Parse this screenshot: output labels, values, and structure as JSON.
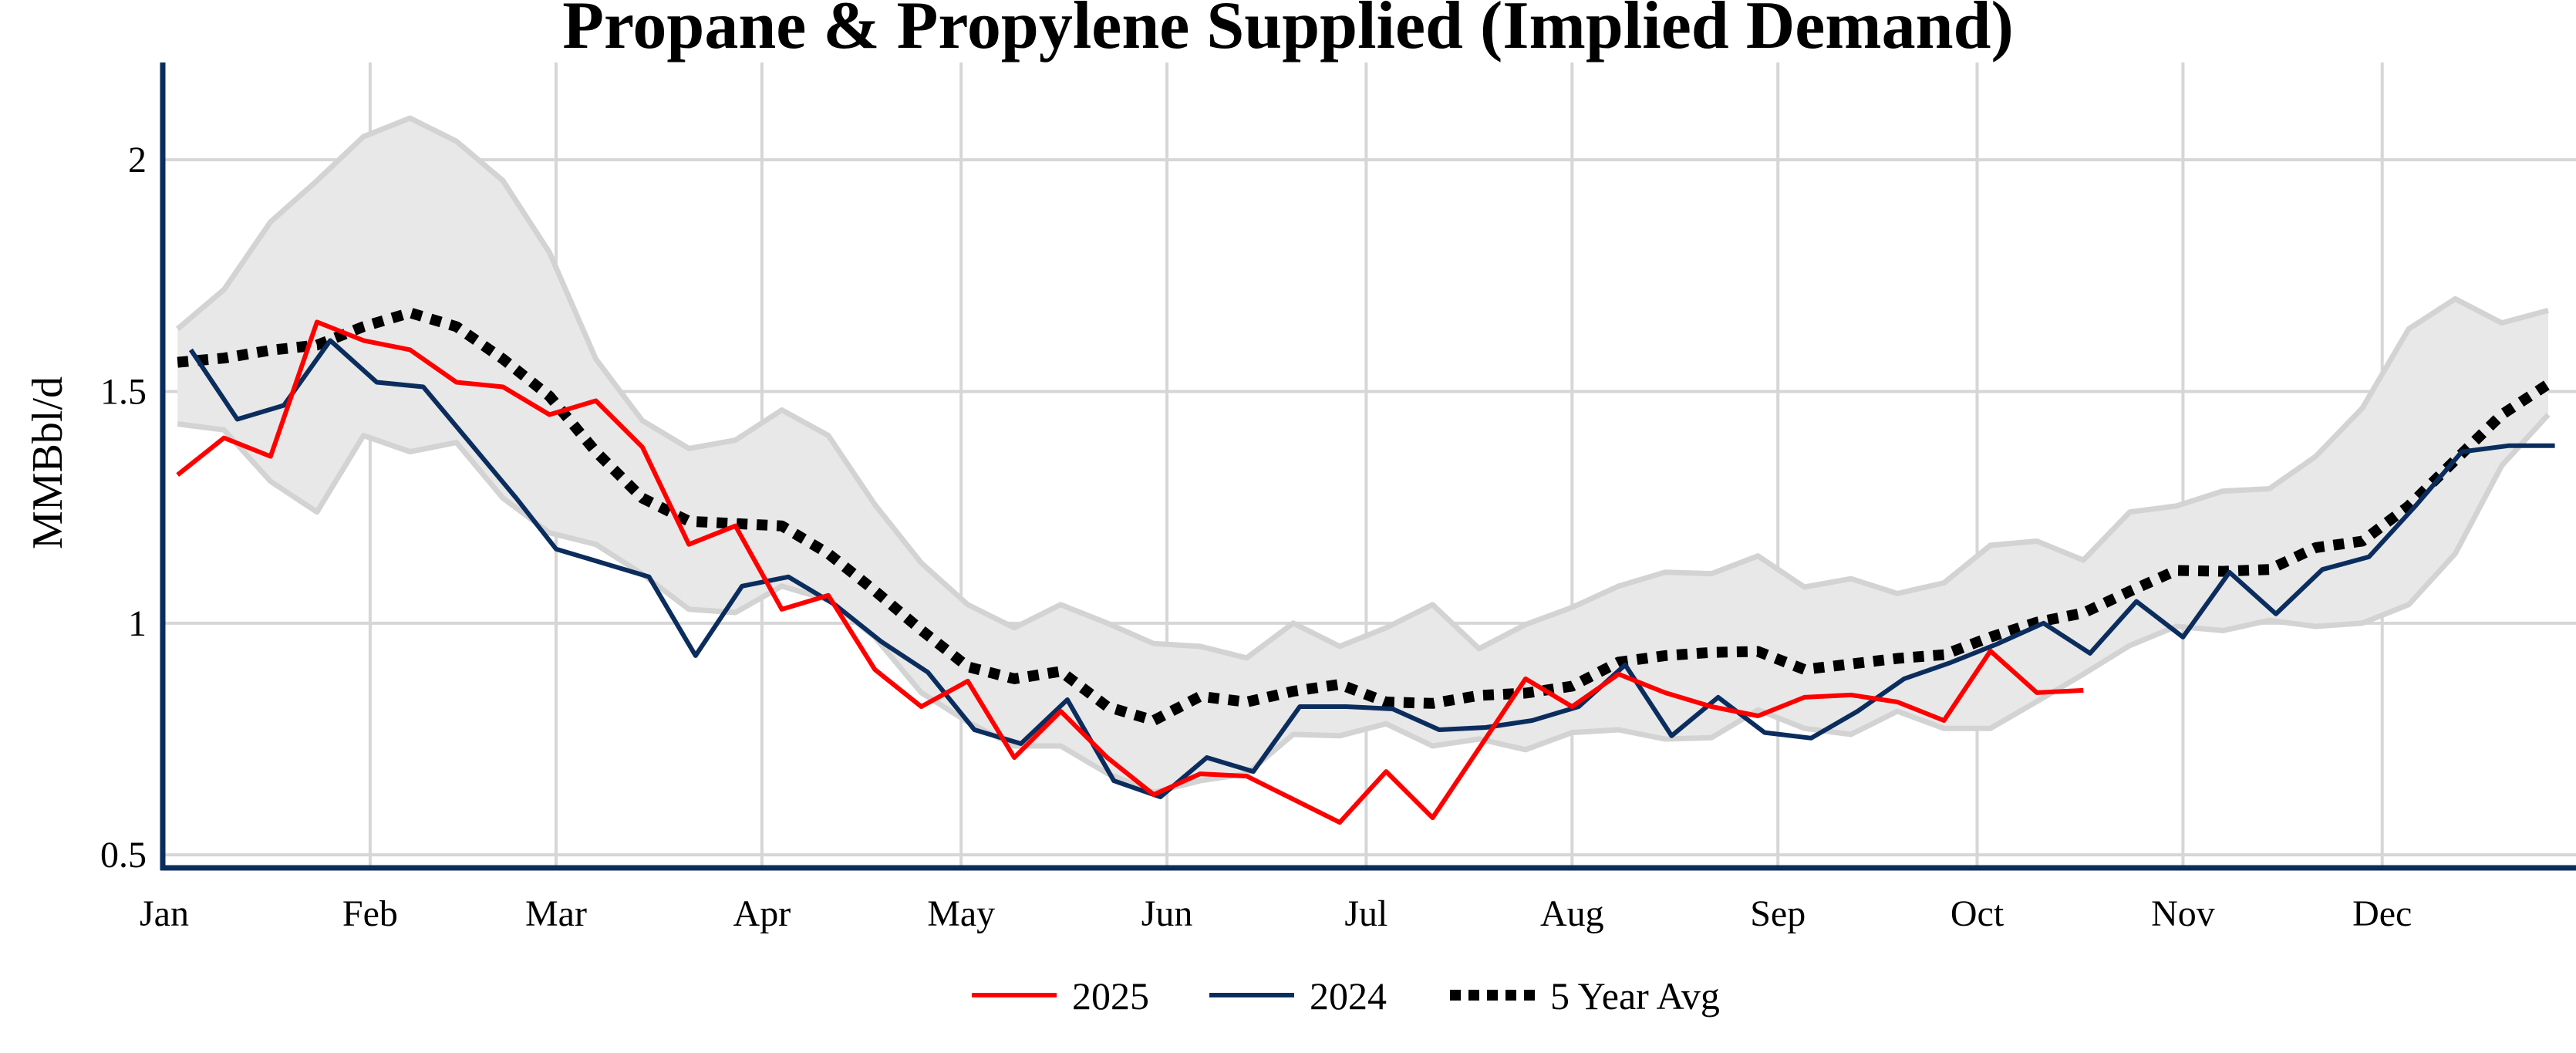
{
  "chart_data": {
    "type": "line",
    "title": "Propane & Propylene Supplied (Implied Demand)",
    "xlabel": "",
    "ylabel": "MMBbl/d",
    "ylim": [
      0.477,
      2.21
    ],
    "xlim": [
      "01-01",
      "12-31"
    ],
    "x_ticks": [
      "Jan",
      "Feb",
      "Mar",
      "Apr",
      "May",
      "Jun",
      "Jul",
      "Aug",
      "Sep",
      "Oct",
      "Nov",
      "Dec"
    ],
    "y_ticks": [
      0.5,
      1,
      1.5,
      2
    ],
    "y_tick_labels": [
      "0.5",
      "1",
      "1.5",
      "2"
    ],
    "grid": true,
    "legend_position": "bottom-center",
    "colors": {
      "s2025": "#ff0000",
      "s2024": "#0b2d5e",
      "avg": "#000000",
      "band_fill": "#e8e8e8",
      "band_line": "#d3d3d3",
      "grid": "#d6d6d6",
      "axis": "#0b2d5e"
    },
    "band": {
      "dates": [
        "01-03",
        "01-10",
        "01-17",
        "01-24",
        "01-31",
        "02-07",
        "02-14",
        "02-21",
        "02-28",
        "03-07",
        "03-14",
        "03-21",
        "03-28",
        "04-04",
        "04-11",
        "04-18",
        "04-25",
        "05-02",
        "05-09",
        "05-16",
        "05-23",
        "05-30",
        "06-06",
        "06-13",
        "06-20",
        "06-27",
        "07-04",
        "07-11",
        "07-18",
        "07-25",
        "08-01",
        "08-08",
        "08-15",
        "08-22",
        "08-29",
        "09-05",
        "09-12",
        "09-19",
        "09-26",
        "10-03",
        "10-10",
        "10-17",
        "10-24",
        "10-31",
        "11-07",
        "11-14",
        "11-21",
        "11-28",
        "12-05",
        "12-12",
        "12-19",
        "12-26"
      ],
      "upper": [
        1.635,
        1.72,
        1.866,
        1.955,
        2.05,
        2.09,
        2.04,
        1.955,
        1.8,
        1.57,
        1.437,
        1.377,
        1.395,
        1.46,
        1.405,
        1.256,
        1.13,
        1.04,
        0.99,
        1.04,
        1.0,
        0.956,
        0.95,
        0.925,
        1.0,
        0.95,
        0.99,
        1.04,
        0.945,
        0.997,
        1.034,
        1.08,
        1.11,
        1.107,
        1.145,
        1.078,
        1.096,
        1.064,
        1.087,
        1.168,
        1.177,
        1.136,
        1.24,
        1.253,
        1.285,
        1.29,
        1.36,
        1.464,
        1.635,
        1.7,
        1.648,
        1.675
      ],
      "lower": [
        1.43,
        1.417,
        1.306,
        1.24,
        1.405,
        1.37,
        1.39,
        1.27,
        1.195,
        1.17,
        1.106,
        1.03,
        1.023,
        1.08,
        1.05,
        0.97,
        0.85,
        0.787,
        0.735,
        0.735,
        0.676,
        0.635,
        0.66,
        0.675,
        0.76,
        0.757,
        0.783,
        0.735,
        0.75,
        0.727,
        0.764,
        0.77,
        0.75,
        0.753,
        0.813,
        0.773,
        0.76,
        0.81,
        0.773,
        0.773,
        0.831,
        0.89,
        0.952,
        0.993,
        0.984,
        1.006,
        0.993,
        1.0,
        1.04,
        1.15,
        1.34,
        1.45
      ]
    },
    "series": [
      {
        "name": "2025",
        "style": "solid",
        "dates": [
          "01-03",
          "01-10",
          "01-17",
          "01-24",
          "01-31",
          "02-07",
          "02-14",
          "02-21",
          "02-28",
          "03-07",
          "03-14",
          "03-21",
          "03-28",
          "04-04",
          "04-11",
          "04-18",
          "04-25",
          "05-02",
          "05-09",
          "05-16",
          "05-23",
          "05-30",
          "06-06",
          "06-13",
          "06-20",
          "06-27",
          "07-04",
          "07-11",
          "07-18",
          "07-25",
          "08-01",
          "08-08",
          "08-15",
          "08-22",
          "08-29",
          "09-05",
          "09-12",
          "09-19",
          "09-26",
          "10-03",
          "10-10",
          "10-17"
        ],
        "values": [
          1.32,
          1.4,
          1.36,
          1.65,
          1.61,
          1.59,
          1.52,
          1.51,
          1.45,
          1.48,
          1.38,
          1.17,
          1.21,
          1.03,
          1.06,
          0.9,
          0.82,
          0.875,
          0.71,
          0.81,
          0.71,
          0.63,
          0.675,
          0.67,
          0.62,
          0.57,
          0.68,
          0.58,
          0.73,
          0.88,
          0.82,
          0.89,
          0.85,
          0.82,
          0.8,
          0.84,
          0.845,
          0.83,
          0.79,
          0.94,
          0.85,
          0.855
        ]
      },
      {
        "name": "2024",
        "style": "solid",
        "dates": [
          "01-05",
          "01-12",
          "01-19",
          "01-26",
          "02-02",
          "02-09",
          "02-16",
          "02-23",
          "03-01",
          "03-08",
          "03-15",
          "03-22",
          "03-29",
          "04-05",
          "04-12",
          "04-19",
          "04-26",
          "05-03",
          "05-10",
          "05-17",
          "05-24",
          "05-31",
          "06-07",
          "06-14",
          "06-21",
          "06-28",
          "07-05",
          "07-12",
          "07-19",
          "07-26",
          "08-02",
          "08-09",
          "08-16",
          "08-23",
          "08-30",
          "09-06",
          "09-13",
          "09-20",
          "09-27",
          "10-04",
          "10-11",
          "10-18",
          "10-25",
          "11-01",
          "11-08",
          "11-15",
          "11-22",
          "11-29",
          "12-06",
          "12-13",
          "12-20",
          "12-27"
        ],
        "values": [
          1.59,
          1.44,
          1.47,
          1.61,
          1.52,
          1.51,
          1.39,
          1.27,
          1.16,
          1.13,
          1.1,
          0.93,
          1.08,
          1.1,
          1.04,
          0.96,
          0.894,
          0.77,
          0.74,
          0.835,
          0.66,
          0.625,
          0.71,
          0.68,
          0.82,
          0.82,
          0.815,
          0.77,
          0.775,
          0.79,
          0.82,
          0.91,
          0.757,
          0.84,
          0.764,
          0.752,
          0.81,
          0.88,
          0.915,
          0.955,
          1.0,
          0.935,
          1.047,
          0.97,
          1.11,
          1.02,
          1.116,
          1.143,
          1.253,
          1.37,
          1.383,
          1.383
        ]
      },
      {
        "name": "5 Year Avg",
        "style": "dotted",
        "dates": [
          "01-03",
          "01-10",
          "01-17",
          "01-24",
          "01-31",
          "02-07",
          "02-14",
          "02-21",
          "02-28",
          "03-07",
          "03-14",
          "03-21",
          "03-28",
          "04-04",
          "04-11",
          "04-18",
          "04-25",
          "05-02",
          "05-09",
          "05-16",
          "05-23",
          "05-30",
          "06-06",
          "06-13",
          "06-20",
          "06-27",
          "07-04",
          "07-11",
          "07-18",
          "07-25",
          "08-01",
          "08-08",
          "08-15",
          "08-22",
          "08-29",
          "09-05",
          "09-12",
          "09-19",
          "09-26",
          "10-03",
          "10-10",
          "10-17",
          "10-24",
          "10-31",
          "11-07",
          "11-14",
          "11-21",
          "11-28",
          "12-05",
          "12-12",
          "12-19",
          "12-26"
        ],
        "values": [
          1.563,
          1.572,
          1.589,
          1.6,
          1.64,
          1.67,
          1.64,
          1.57,
          1.49,
          1.37,
          1.27,
          1.22,
          1.215,
          1.21,
          1.15,
          1.07,
          0.985,
          0.906,
          0.88,
          0.896,
          0.82,
          0.79,
          0.842,
          0.83,
          0.853,
          0.868,
          0.83,
          0.827,
          0.844,
          0.849,
          0.864,
          0.916,
          0.93,
          0.937,
          0.939,
          0.9,
          0.912,
          0.924,
          0.932,
          0.97,
          1.002,
          1.022,
          1.069,
          1.114,
          1.112,
          1.116,
          1.163,
          1.177,
          1.253,
          1.352,
          1.45,
          1.516
        ]
      }
    ]
  }
}
